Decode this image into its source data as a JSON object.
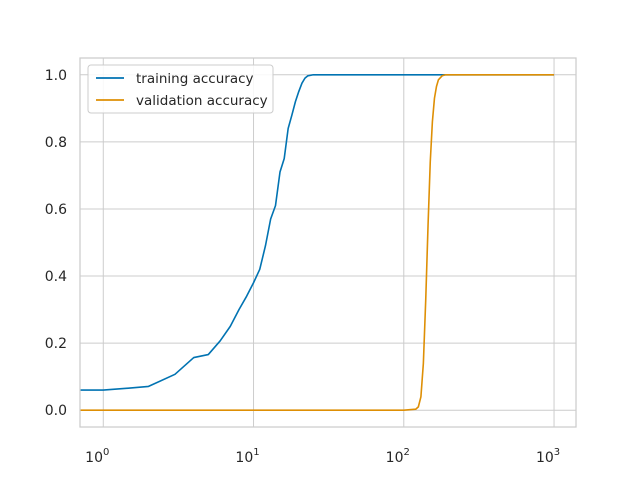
{
  "chart_data": {
    "type": "line",
    "title": "",
    "xlabel": "",
    "ylabel": "",
    "xscale": "log",
    "xlim": [
      0.7,
      1400
    ],
    "ylim": [
      -0.05,
      1.05
    ],
    "grid": true,
    "legend_position": "top-left",
    "x_ticks": [
      {
        "value": 1,
        "base": "10",
        "exp": "0"
      },
      {
        "value": 10,
        "base": "10",
        "exp": "1"
      },
      {
        "value": 100,
        "base": "10",
        "exp": "2"
      },
      {
        "value": 1000,
        "base": "10",
        "exp": "3"
      }
    ],
    "y_ticks": [
      {
        "value": 0.0,
        "label": "0.0"
      },
      {
        "value": 0.2,
        "label": "0.2"
      },
      {
        "value": 0.4,
        "label": "0.4"
      },
      {
        "value": 0.6,
        "label": "0.6"
      },
      {
        "value": 0.8,
        "label": "0.8"
      },
      {
        "value": 1.0,
        "label": "1.0"
      }
    ],
    "series": [
      {
        "name": "training accuracy",
        "color": "#0173b2",
        "x": [
          0.7,
          1,
          1.5,
          2,
          3,
          4,
          5,
          6,
          7,
          8,
          9,
          10,
          11,
          12,
          13,
          14,
          15,
          16,
          17,
          18,
          19,
          20,
          21,
          22,
          23,
          25,
          30,
          50,
          100,
          200,
          500,
          1000
        ],
        "y": [
          0.06,
          0.06,
          0.066,
          0.071,
          0.107,
          0.157,
          0.166,
          0.207,
          0.25,
          0.3,
          0.34,
          0.38,
          0.42,
          0.49,
          0.57,
          0.61,
          0.71,
          0.75,
          0.84,
          0.88,
          0.92,
          0.95,
          0.975,
          0.99,
          0.997,
          1.0,
          1.0,
          1.0,
          1.0,
          1.0,
          1.0,
          1.0
        ]
      },
      {
        "name": "validation accuracy",
        "color": "#de8f05",
        "x": [
          0.7,
          1,
          10,
          100,
          120,
          125,
          130,
          135,
          140,
          145,
          150,
          155,
          160,
          165,
          170,
          180,
          190,
          200,
          300,
          500,
          1000
        ],
        "y": [
          0,
          0,
          0,
          0,
          0.003,
          0.01,
          0.04,
          0.14,
          0.33,
          0.55,
          0.74,
          0.86,
          0.93,
          0.965,
          0.985,
          0.997,
          1.0,
          1.0,
          1.0,
          1.0,
          1.0
        ]
      }
    ]
  }
}
